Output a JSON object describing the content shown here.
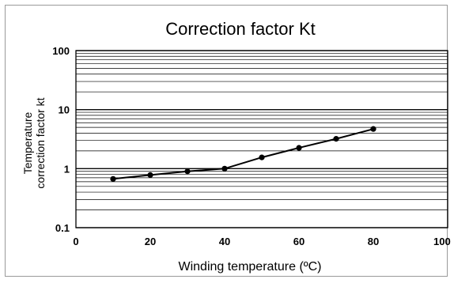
{
  "chart_data": {
    "type": "line",
    "title": "Correction factor Kt",
    "xlabel": "Winding temperature (ºC)",
    "ylabel_lines": [
      "Temperature",
      "correction factor kt"
    ],
    "x": [
      10,
      20,
      30,
      40,
      50,
      60,
      70,
      80
    ],
    "series": [
      {
        "values": [
          0.67,
          0.78,
          0.9,
          1.0,
          1.55,
          2.25,
          3.2,
          4.7
        ]
      }
    ],
    "xlim": [
      0,
      100
    ],
    "ylim": [
      0.1,
      100
    ],
    "yscale": "log",
    "xticks": [
      "0",
      "20",
      "40",
      "60",
      "80",
      "100"
    ],
    "yticks": [
      "0.1",
      "1",
      "10",
      "100"
    ],
    "grid": true,
    "line_color": "#000000",
    "grid_color": "#000000"
  }
}
